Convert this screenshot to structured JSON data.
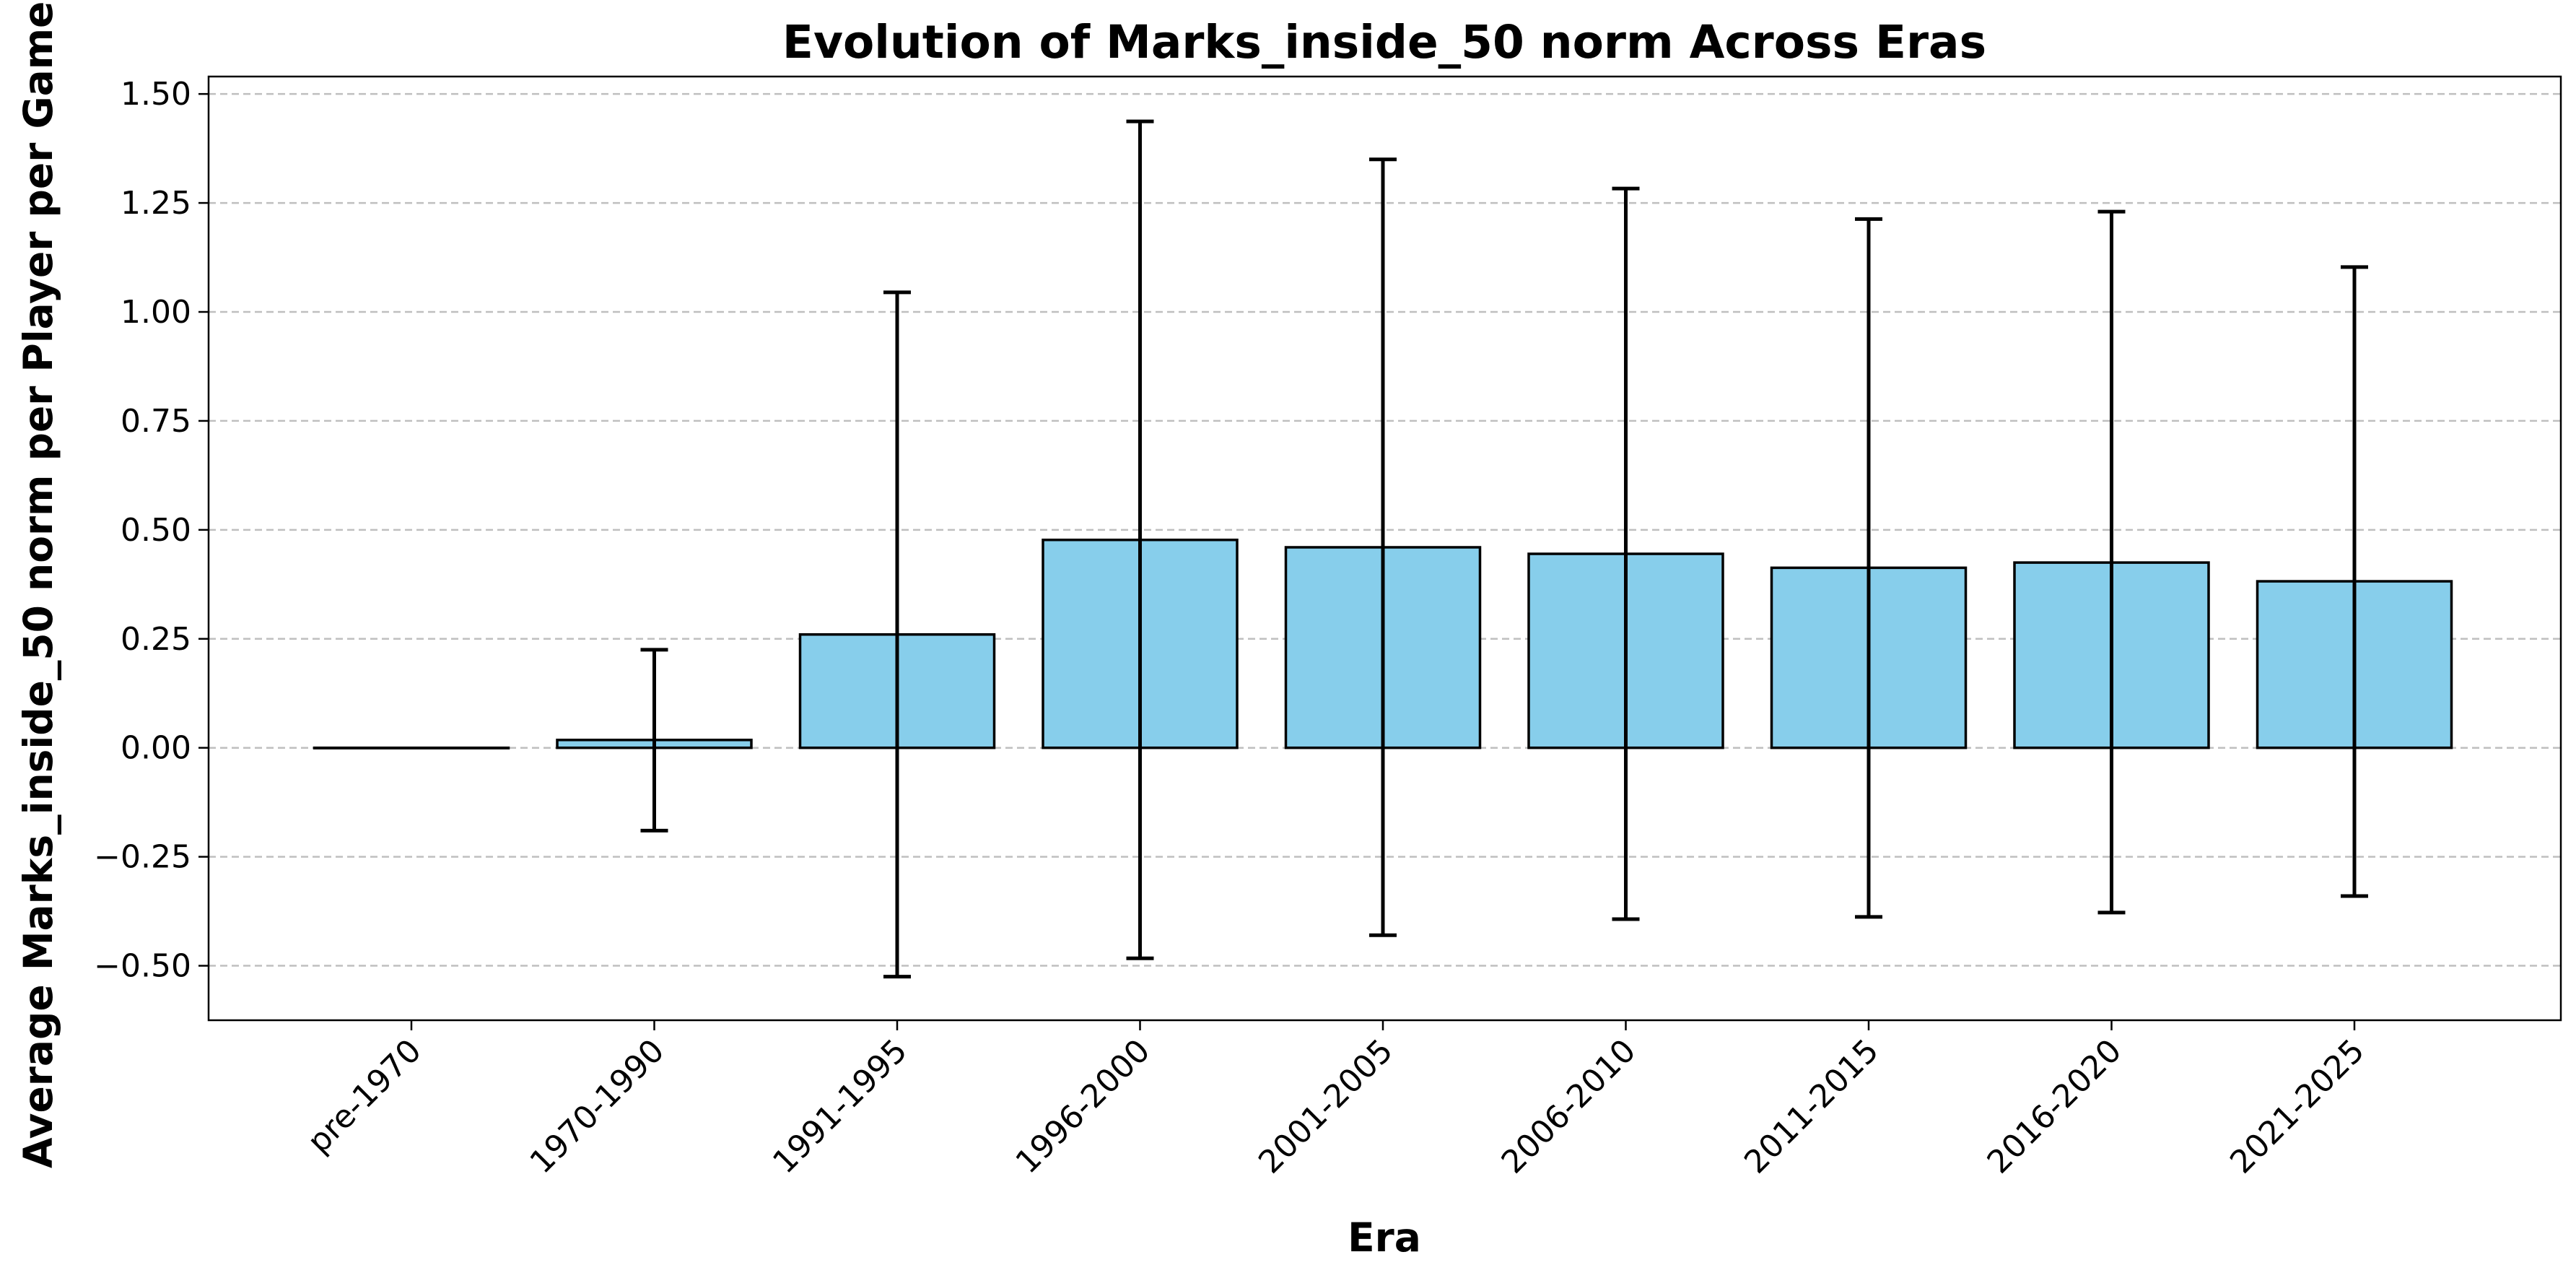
{
  "chart_data": {
    "type": "bar",
    "title": "Evolution of Marks_inside_50 norm Across Eras",
    "xlabel": "Era",
    "ylabel": "Average Marks_inside_50 norm per Player per Game",
    "categories": [
      "pre-1970",
      "1970-1990",
      "1991-1995",
      "1996-2000",
      "2001-2005",
      "2006-2010",
      "2011-2015",
      "2016-2020",
      "2021-2025"
    ],
    "values": [
      0.0,
      0.018,
      0.26,
      0.477,
      0.46,
      0.445,
      0.413,
      0.425,
      0.382
    ],
    "error_low": [
      0.0,
      -0.19,
      -0.525,
      -0.483,
      -0.43,
      -0.393,
      -0.388,
      -0.378,
      -0.34
    ],
    "error_high": [
      0.0,
      0.225,
      1.045,
      1.437,
      1.35,
      1.283,
      1.213,
      1.23,
      1.103
    ],
    "ylim": [
      -0.625,
      1.54
    ],
    "yticks": [
      -0.5,
      -0.25,
      0.0,
      0.25,
      0.5,
      0.75,
      1.0,
      1.25,
      1.5
    ],
    "ytick_labels": [
      "−0.50",
      "−0.25",
      "0.00",
      "0.25",
      "0.50",
      "0.75",
      "1.00",
      "1.25",
      "1.50"
    ],
    "grid": "y-dashed",
    "bar_color": "#87ceeb",
    "edge_color": "#000000",
    "grid_color": "#b0b0b0"
  }
}
